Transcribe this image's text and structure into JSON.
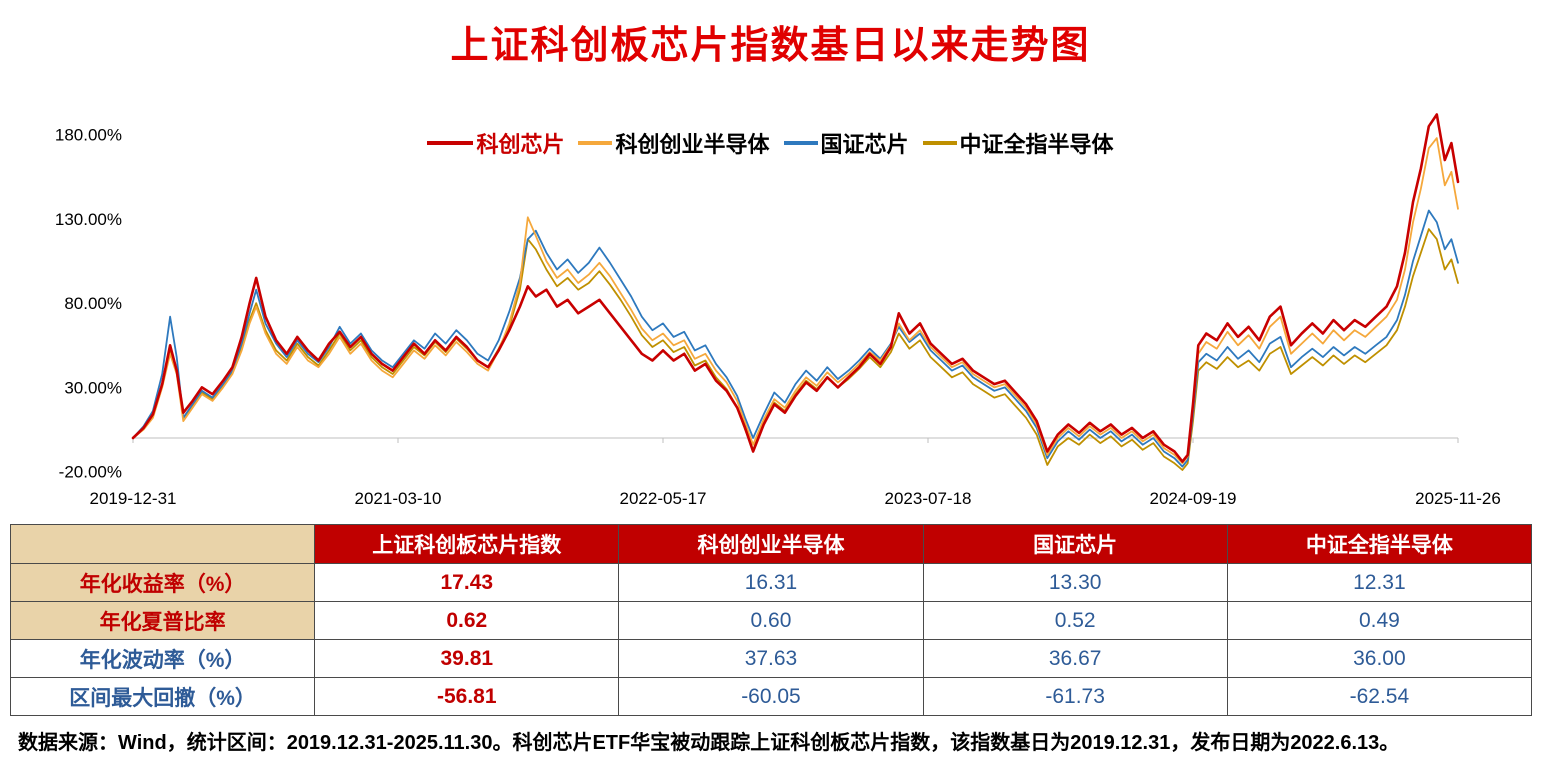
{
  "title": "上证科创板芯片指数基日以来走势图",
  "chart_data": {
    "type": "line",
    "title": "上证科创板芯片指数基日以来走势图",
    "grid": false,
    "legend_position": "top-center",
    "ylim": [
      -25,
      200
    ],
    "y_ticks": [
      {
        "value": 180,
        "label": "180.00%"
      },
      {
        "value": 130,
        "label": "130.00%"
      },
      {
        "value": 80,
        "label": "80.00%"
      },
      {
        "value": 30,
        "label": "30.00%"
      },
      {
        "value": -20,
        "label": "-20.00%"
      }
    ],
    "x_tick_pos": [
      0,
      0.2,
      0.4,
      0.6,
      0.8,
      1.0
    ],
    "x_tick_labels": [
      "2019-12-31",
      "2021-03-10",
      "2022-05-17",
      "2023-07-18",
      "2024-09-19",
      "2025-11-26"
    ],
    "x": [
      0,
      0.008,
      0.015,
      0.022,
      0.028,
      0.033,
      0.038,
      0.045,
      0.052,
      0.06,
      0.068,
      0.075,
      0.082,
      0.088,
      0.093,
      0.1,
      0.108,
      0.116,
      0.124,
      0.132,
      0.14,
      0.148,
      0.156,
      0.164,
      0.172,
      0.18,
      0.188,
      0.196,
      0.204,
      0.212,
      0.22,
      0.228,
      0.236,
      0.244,
      0.252,
      0.26,
      0.268,
      0.276,
      0.284,
      0.292,
      0.298,
      0.304,
      0.312,
      0.32,
      0.328,
      0.336,
      0.344,
      0.352,
      0.36,
      0.368,
      0.376,
      0.384,
      0.392,
      0.4,
      0.408,
      0.416,
      0.424,
      0.432,
      0.44,
      0.448,
      0.456,
      0.462,
      0.468,
      0.476,
      0.484,
      0.492,
      0.5,
      0.508,
      0.516,
      0.524,
      0.532,
      0.54,
      0.548,
      0.556,
      0.564,
      0.572,
      0.578,
      0.586,
      0.594,
      0.602,
      0.61,
      0.618,
      0.626,
      0.634,
      0.642,
      0.65,
      0.658,
      0.666,
      0.674,
      0.682,
      0.69,
      0.698,
      0.706,
      0.714,
      0.722,
      0.73,
      0.738,
      0.746,
      0.754,
      0.762,
      0.77,
      0.778,
      0.786,
      0.792,
      0.796,
      0.8,
      0.804,
      0.81,
      0.818,
      0.826,
      0.834,
      0.842,
      0.85,
      0.858,
      0.866,
      0.874,
      0.882,
      0.89,
      0.898,
      0.906,
      0.914,
      0.922,
      0.93,
      0.938,
      0.946,
      0.954,
      0.96,
      0.966,
      0.972,
      0.978,
      0.984,
      0.99,
      0.995,
      1.0
    ],
    "series": [
      {
        "name": "科创芯片",
        "color": "#C80000",
        "label_color": "#C80000",
        "width": 2.6,
        "swatch_w": 46,
        "values": [
          0,
          6,
          14,
          32,
          55,
          40,
          15,
          22,
          30,
          26,
          34,
          42,
          60,
          80,
          95,
          72,
          58,
          50,
          60,
          52,
          46,
          56,
          63,
          54,
          60,
          50,
          44,
          40,
          48,
          56,
          50,
          58,
          52,
          60,
          54,
          46,
          42,
          52,
          64,
          78,
          90,
          84,
          88,
          78,
          82,
          74,
          78,
          82,
          74,
          66,
          58,
          50,
          46,
          52,
          46,
          50,
          40,
          44,
          34,
          28,
          18,
          6,
          -8,
          8,
          20,
          15,
          25,
          33,
          28,
          36,
          30,
          36,
          42,
          50,
          44,
          54,
          74,
          62,
          68,
          56,
          50,
          44,
          47,
          40,
          36,
          32,
          34,
          27,
          20,
          10,
          -8,
          2,
          8,
          3,
          9,
          4,
          8,
          2,
          6,
          0,
          4,
          -4,
          -8,
          -14,
          -10,
          20,
          55,
          62,
          58,
          68,
          60,
          66,
          58,
          72,
          78,
          55,
          62,
          68,
          62,
          70,
          64,
          70,
          66,
          72,
          78,
          90,
          110,
          140,
          160,
          185,
          192,
          165,
          175,
          152
        ]
      },
      {
        "name": "科创创业半导体",
        "color": "#F5A83C",
        "label_color": "#000000",
        "width": 1.8,
        "swatch_w": 34,
        "values": [
          0,
          5,
          12,
          30,
          50,
          38,
          10,
          18,
          26,
          22,
          30,
          38,
          52,
          68,
          78,
          62,
          50,
          44,
          54,
          46,
          42,
          50,
          60,
          50,
          56,
          46,
          40,
          36,
          44,
          52,
          47,
          55,
          49,
          57,
          51,
          44,
          40,
          52,
          68,
          92,
          131,
          120,
          105,
          95,
          100,
          92,
          97,
          104,
          96,
          86,
          76,
          65,
          58,
          62,
          55,
          58,
          47,
          50,
          40,
          33,
          22,
          9,
          -4,
          11,
          23,
          18,
          28,
          36,
          31,
          39,
          33,
          38,
          44,
          51,
          46,
          55,
          68,
          58,
          64,
          54,
          48,
          42,
          45,
          38,
          34,
          30,
          32,
          25,
          18,
          8,
          -10,
          0,
          6,
          1,
          7,
          2,
          6,
          0,
          4,
          -2,
          2,
          -6,
          -10,
          -15,
          -11,
          18,
          50,
          57,
          53,
          63,
          55,
          61,
          53,
          66,
          72,
          50,
          56,
          62,
          56,
          64,
          58,
          64,
          60,
          66,
          72,
          82,
          100,
          128,
          148,
          172,
          178,
          150,
          158,
          136
        ]
      },
      {
        "name": "国证芯片",
        "color": "#2E79BE",
        "label_color": "#000000",
        "width": 1.8,
        "swatch_w": 34,
        "values": [
          0,
          7,
          16,
          38,
          72,
          48,
          12,
          20,
          28,
          24,
          32,
          40,
          56,
          74,
          88,
          68,
          56,
          48,
          58,
          50,
          45,
          54,
          66,
          56,
          62,
          52,
          46,
          42,
          50,
          58,
          53,
          62,
          56,
          64,
          58,
          50,
          46,
          58,
          75,
          95,
          118,
          123,
          110,
          100,
          106,
          98,
          104,
          113,
          104,
          94,
          84,
          72,
          64,
          68,
          60,
          63,
          52,
          55,
          44,
          36,
          25,
          12,
          0,
          14,
          27,
          21,
          32,
          40,
          34,
          42,
          35,
          40,
          46,
          53,
          47,
          56,
          66,
          57,
          62,
          52,
          46,
          40,
          43,
          36,
          32,
          28,
          30,
          23,
          16,
          6,
          -12,
          -2,
          4,
          -1,
          5,
          0,
          4,
          -2,
          2,
          -4,
          0,
          -8,
          -12,
          -17,
          -13,
          14,
          45,
          50,
          46,
          54,
          47,
          52,
          45,
          56,
          60,
          42,
          48,
          53,
          48,
          54,
          49,
          54,
          50,
          55,
          60,
          70,
          85,
          105,
          120,
          135,
          128,
          112,
          118,
          104
        ]
      },
      {
        "name": "中证全指半导体",
        "color": "#BF9000",
        "label_color": "#000000",
        "width": 1.8,
        "swatch_w": 34,
        "values": [
          0,
          6,
          13,
          31,
          52,
          39,
          12,
          19,
          27,
          23,
          31,
          39,
          54,
          70,
          80,
          64,
          52,
          46,
          56,
          48,
          43,
          52,
          62,
          52,
          58,
          48,
          42,
          38,
          46,
          54,
          49,
          57,
          51,
          59,
          53,
          46,
          42,
          53,
          66,
          88,
          118,
          112,
          100,
          90,
          95,
          88,
          92,
          99,
          91,
          82,
          72,
          61,
          54,
          58,
          51,
          54,
          43,
          46,
          36,
          29,
          18,
          5,
          -7,
          9,
          21,
          16,
          26,
          34,
          29,
          36,
          30,
          35,
          41,
          48,
          42,
          51,
          62,
          53,
          58,
          48,
          42,
          36,
          39,
          32,
          28,
          24,
          26,
          19,
          12,
          2,
          -16,
          -5,
          0,
          -4,
          2,
          -3,
          1,
          -5,
          -1,
          -7,
          -3,
          -11,
          -15,
          -19,
          -15,
          10,
          40,
          45,
          41,
          48,
          42,
          46,
          40,
          50,
          54,
          38,
          43,
          48,
          43,
          49,
          44,
          49,
          45,
          50,
          55,
          64,
          78,
          96,
          110,
          124,
          118,
          100,
          106,
          92
        ]
      }
    ]
  },
  "table": {
    "corner": "",
    "headers": [
      "上证科创板芯片指数",
      "科创创业半导体",
      "国证芯片",
      "中证全指半导体"
    ],
    "rows": [
      {
        "label": "年化收益率（%）",
        "values": [
          "17.43",
          "16.31",
          "13.30",
          "12.31"
        ]
      },
      {
        "label": "年化夏普比率",
        "values": [
          "0.62",
          "0.60",
          "0.52",
          "0.49"
        ]
      },
      {
        "label": "年化波动率（%）",
        "values": [
          "39.81",
          "37.63",
          "36.67",
          "36.00"
        ]
      },
      {
        "label": "区间最大回撤（%）",
        "values": [
          "-56.81",
          "-60.05",
          "-61.73",
          "-62.54"
        ]
      }
    ]
  },
  "footer": {
    "text": "数据来源：Wind，统计区间：2019.12.31-2025.11.30。科创芯片ETF华宝被动跟踪上证科创板芯片指数，该指数基日为2019.12.31，发布日期为2022.6.13。"
  }
}
